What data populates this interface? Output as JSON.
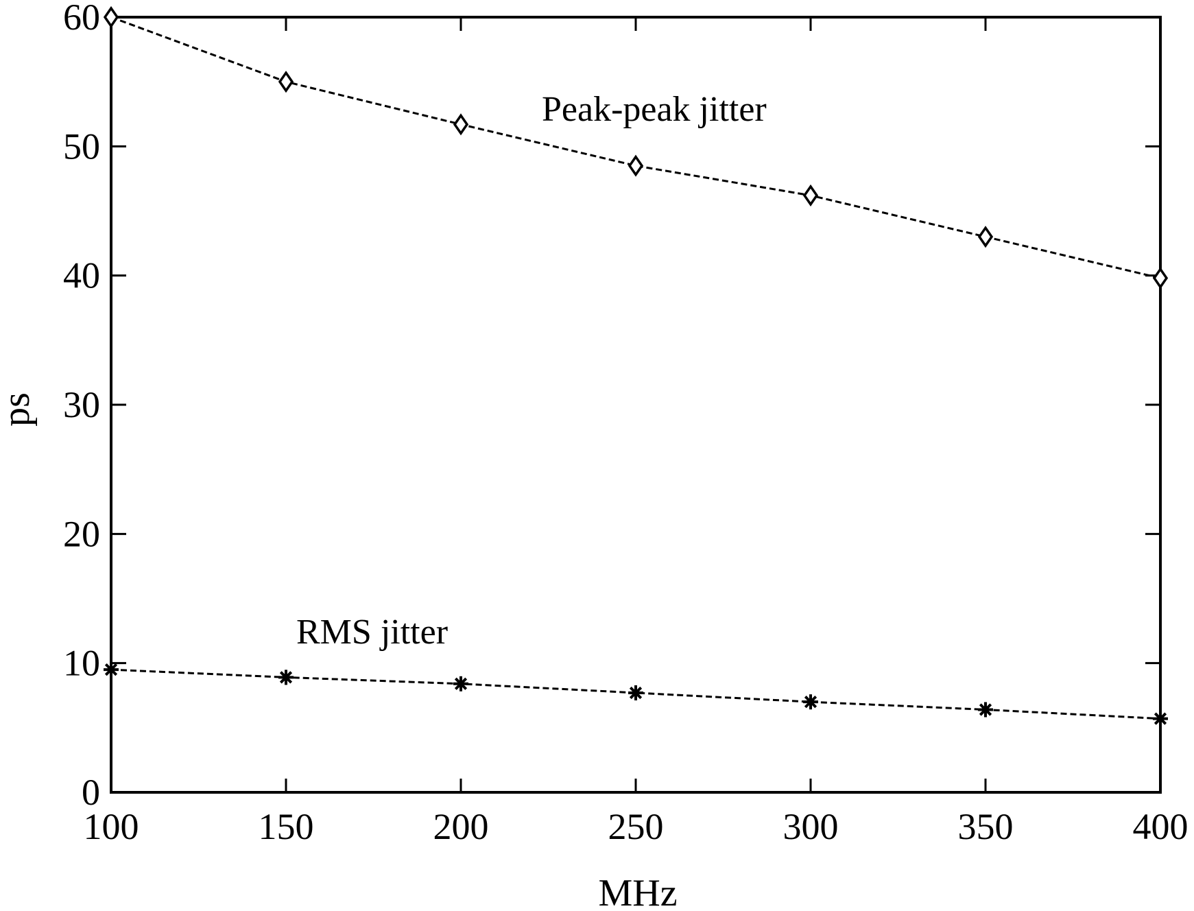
{
  "chart_data": {
    "type": "line",
    "xlabel": "MHz",
    "ylabel": "ps",
    "x": [
      100,
      150,
      200,
      250,
      300,
      350,
      400
    ],
    "xlim": [
      100,
      400
    ],
    "ylim": [
      0,
      60
    ],
    "xticks": [
      100,
      150,
      200,
      250,
      300,
      350,
      400
    ],
    "yticks": [
      0,
      10,
      20,
      30,
      40,
      50,
      60
    ],
    "grid": false,
    "legend": "none",
    "series": [
      {
        "name": "Peak-peak jitter",
        "values": [
          60.0,
          55.0,
          51.7,
          48.5,
          46.2,
          43.0,
          39.8
        ],
        "marker": "diamond",
        "line_style": "dashed",
        "color": "#000000"
      },
      {
        "name": "RMS jitter",
        "values": [
          9.5,
          8.9,
          8.4,
          7.7,
          7.0,
          6.4,
          5.7
        ],
        "marker": "star",
        "line_style": "dashed",
        "color": "#000000"
      }
    ]
  }
}
